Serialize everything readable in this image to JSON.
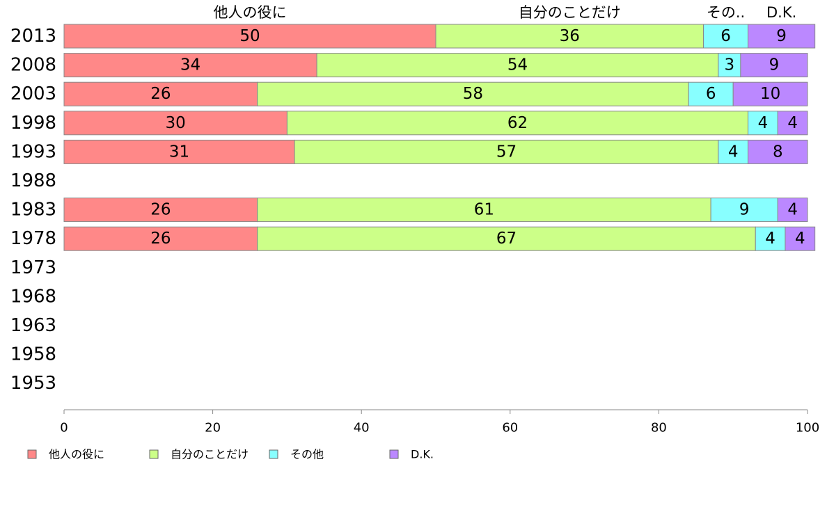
{
  "chart_data": {
    "type": "bar",
    "orientation": "horizontal",
    "stacked": true,
    "categories": [
      "2013",
      "2008",
      "2003",
      "1998",
      "1993",
      "1988",
      "1983",
      "1978",
      "1973",
      "1968",
      "1963",
      "1958",
      "1953"
    ],
    "series": [
      {
        "name": "他人の役に",
        "top_label": "他人の役に",
        "color": "#ff8888",
        "values": [
          50,
          34,
          26,
          30,
          31,
          null,
          26,
          26,
          null,
          null,
          null,
          null,
          null
        ]
      },
      {
        "name": "自分のことだけ",
        "top_label": "自分のことだけ",
        "color": "#ccff88",
        "values": [
          36,
          54,
          58,
          62,
          57,
          null,
          61,
          67,
          null,
          null,
          null,
          null,
          null
        ]
      },
      {
        "name": "その他",
        "top_label": "その..",
        "color": "#88ffff",
        "values": [
          6,
          3,
          6,
          4,
          4,
          null,
          9,
          4,
          null,
          null,
          null,
          null,
          null
        ]
      },
      {
        "name": "D.K.",
        "top_label": "D.K.",
        "color": "#bb88ff",
        "values": [
          9,
          9,
          10,
          4,
          8,
          null,
          4,
          4,
          null,
          null,
          null,
          null,
          null
        ]
      }
    ],
    "xlim": [
      0,
      100
    ],
    "xticks": [
      0,
      20,
      40,
      60,
      80,
      100
    ],
    "xlabel": "",
    "ylabel": "",
    "title": "",
    "grid": false,
    "legend_position": "bottom-left"
  }
}
